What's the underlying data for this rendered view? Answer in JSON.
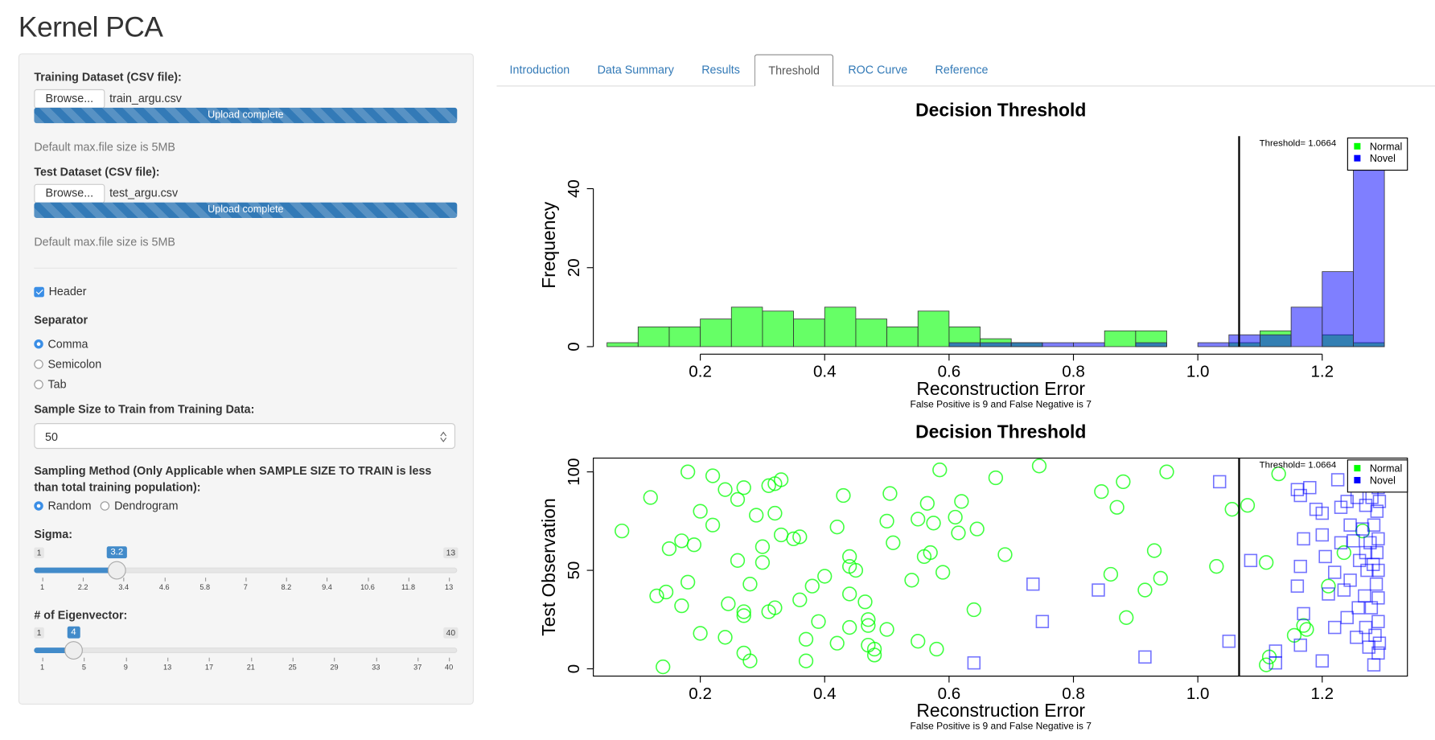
{
  "app_title": "Kernel PCA",
  "sidebar": {
    "training": {
      "label": "Training Dataset (CSV file):",
      "button": "Browse...",
      "file": "train_argu.csv",
      "progress": "Upload complete",
      "note": "Default max.file size is 5MB"
    },
    "test": {
      "label": "Test Dataset (CSV file):",
      "button": "Browse...",
      "file": "test_argu.csv",
      "progress": "Upload complete",
      "note": "Default max.file size is 5MB"
    },
    "header": {
      "label": "Header",
      "checked": true
    },
    "separator": {
      "label": "Separator",
      "options": [
        "Comma",
        "Semicolon",
        "Tab"
      ],
      "selected": 0
    },
    "sample_size": {
      "label": "Sample Size to Train from Training Data:",
      "value": 50
    },
    "sampling_method": {
      "label": "Sampling Method (Only Applicable when SAMPLE SIZE TO TRAIN is less than total training population):",
      "options": [
        "Random",
        "Dendrogram"
      ],
      "selected": 0
    },
    "sigma": {
      "label": "Sigma:",
      "min": 1,
      "max": 13,
      "value": 3.2,
      "ticks": [
        1,
        2.2,
        3.4,
        4.6,
        5.8,
        7,
        8.2,
        9.4,
        10.6,
        11.8,
        13
      ]
    },
    "eigenvector": {
      "label": "# of Eigenvector:",
      "min": 1,
      "max": 40,
      "value": 4,
      "ticks": [
        1,
        5,
        9,
        13,
        17,
        21,
        25,
        29,
        33,
        37,
        40
      ]
    }
  },
  "tabs": {
    "items": [
      "Introduction",
      "Data Summary",
      "Results",
      "Threshold",
      "ROC Curve",
      "Reference"
    ],
    "active": 3
  },
  "chart_data": [
    {
      "type": "histogram",
      "title": "Decision Threshold",
      "x_label": "Reconstruction Error",
      "y_label": "Frequency",
      "subtitle": "False Positive is 9 and False Negative is 7",
      "bins": [
        0.05,
        0.1,
        0.15,
        0.2,
        0.25,
        0.3,
        0.35,
        0.4,
        0.45,
        0.5,
        0.55,
        0.6,
        0.65,
        0.7,
        0.75,
        0.8,
        0.85,
        0.9,
        0.95,
        1.0,
        1.05,
        1.1,
        1.15,
        1.2,
        1.25,
        1.3
      ],
      "series": [
        {
          "name": "Normal",
          "color": "#00ff00",
          "values": [
            1,
            5,
            5,
            7,
            10,
            9,
            7,
            10,
            7,
            5,
            9,
            5,
            2,
            1,
            0,
            0,
            4,
            4,
            0,
            0,
            1,
            4,
            0,
            3,
            1
          ]
        },
        {
          "name": "Novel",
          "color": "#0000ff",
          "values": [
            0,
            0,
            0,
            0,
            0,
            0,
            0,
            0,
            0,
            0,
            0,
            1,
            1,
            1,
            1,
            1,
            0,
            1,
            0,
            1,
            3,
            3,
            10,
            19,
            45
          ]
        }
      ],
      "xlim": [
        0.028,
        1.337
      ],
      "ylim": [
        -1.9,
        53.3
      ],
      "xticks": [
        0.2,
        0.4,
        0.6,
        0.8,
        {
          "value": 1,
          "label": "1.0"
        },
        1.2
      ],
      "yticks": [
        0,
        20,
        40
      ],
      "threshold": 1.0664,
      "threshold_label": "Threshold= 1.0664",
      "legend": "top-right",
      "frame": false
    },
    {
      "type": "scatter",
      "title": "Decision Threshold",
      "x_label": "Reconstruction Error",
      "y_label": "Test Observation",
      "subtitle": "False Positive is 9 and False Negative is 7",
      "series": [
        {
          "name": "Normal",
          "color": "#00ff00",
          "marker": "circle",
          "x": [
            0.074,
            0.12,
            0.13,
            0.145,
            0.14,
            0.15,
            0.17,
            0.18,
            0.17,
            0.18,
            0.19,
            0.2,
            0.2,
            0.22,
            0.22,
            0.24,
            0.24,
            0.245,
            0.26,
            0.26,
            0.27,
            0.27,
            0.27,
            0.27,
            0.28,
            0.28,
            0.29,
            0.3,
            0.31,
            0.3,
            0.31,
            0.32,
            0.32,
            0.32,
            0.33,
            0.33,
            0.35,
            0.36,
            0.36,
            0.37,
            0.37,
            0.38,
            0.39,
            0.4,
            0.42,
            0.42,
            0.43,
            0.44,
            0.44,
            0.44,
            0.44,
            0.45,
            0.465,
            0.47,
            0.47,
            0.48,
            0.48,
            0.47,
            0.5,
            0.5,
            0.505,
            0.51,
            0.54,
            0.55,
            0.55,
            0.56,
            0.565,
            0.57,
            0.575,
            0.58,
            0.585,
            0.59,
            0.61,
            0.615,
            0.62,
            0.64,
            0.645,
            0.675,
            0.69,
            0.745,
            0.845,
            0.86,
            0.87,
            0.88,
            0.885,
            0.915,
            0.93,
            0.94,
            0.95,
            1.03,
            1.055,
            1.08,
            1.11,
            1.11,
            1.115,
            1.13,
            1.155,
            1.17,
            1.175,
            1.21,
            1.235,
            1.265
          ],
          "y": [
            70,
            87,
            37,
            39,
            1,
            61,
            32,
            100,
            65,
            44,
            63,
            18,
            80,
            98,
            73,
            16,
            91,
            33,
            55,
            86,
            92,
            27,
            8,
            29,
            4,
            43,
            78,
            62,
            29,
            54,
            93,
            94,
            79,
            31,
            96,
            68,
            66,
            67,
            35,
            15,
            4,
            42,
            24,
            47,
            72,
            13,
            88,
            57,
            52,
            38,
            21,
            50,
            34,
            25,
            22,
            10,
            7,
            12,
            20,
            75,
            89,
            64,
            45,
            14,
            76,
            57,
            84,
            59,
            74,
            10,
            101,
            49,
            77,
            69,
            85,
            30,
            71,
            97,
            58,
            103,
            90,
            48,
            82,
            95,
            26,
            40,
            60,
            46,
            100,
            52,
            81,
            83,
            54,
            2,
            6,
            99,
            17,
            22,
            20,
            42,
            59,
            70
          ]
        },
        {
          "name": "Novel",
          "color": "#0000ff",
          "marker": "square",
          "x": [
            0.64,
            0.735,
            0.75,
            0.84,
            0.915,
            1.035,
            1.05,
            1.085,
            1.125,
            1.125,
            1.16,
            1.165,
            1.165,
            1.165,
            1.17,
            1.16,
            1.17,
            1.18,
            1.19,
            1.2,
            1.2,
            1.2,
            1.205,
            1.21,
            1.22,
            1.22,
            1.225,
            1.23,
            1.23,
            1.235,
            1.24,
            1.24,
            1.245,
            1.245,
            1.25,
            1.255,
            1.256,
            1.258,
            1.26,
            1.263,
            1.265,
            1.268,
            1.27,
            1.27,
            1.27,
            1.272,
            1.275,
            1.275,
            1.277,
            1.279,
            1.28,
            1.282,
            1.283,
            1.283,
            1.285,
            1.287,
            1.288,
            1.288,
            1.29,
            1.29,
            1.29,
            1.29,
            1.29,
            1.29,
            1.292,
            1.292
          ],
          "y": [
            3,
            43,
            24,
            40,
            6,
            95,
            14,
            55,
            9,
            3,
            91,
            12,
            88,
            52,
            66,
            42,
            28,
            92,
            81,
            68,
            4,
            79,
            57,
            38,
            21,
            49,
            96,
            64,
            82,
            40,
            26,
            85,
            73,
            45,
            65,
            16,
            87,
            31,
            55,
            93,
            71,
            37,
            59,
            21,
            83,
            50,
            11,
            98,
            64,
            31,
            87,
            53,
            2,
            73,
            17,
            43,
            80,
            59,
            8,
            92,
            36,
            66,
            50,
            24,
            85,
            13
          ]
        }
      ],
      "xlim": [
        0.028,
        1.337
      ],
      "ylim": [
        -3.7,
        107
      ],
      "xticks": [
        0.2,
        0.4,
        0.6,
        0.8,
        {
          "value": 1,
          "label": "1.0"
        },
        1.2
      ],
      "yticks": [
        0,
        50,
        100
      ],
      "threshold": 1.0664,
      "threshold_label": "Threshold= 1.0664",
      "legend": "top-right",
      "frame": true
    }
  ]
}
